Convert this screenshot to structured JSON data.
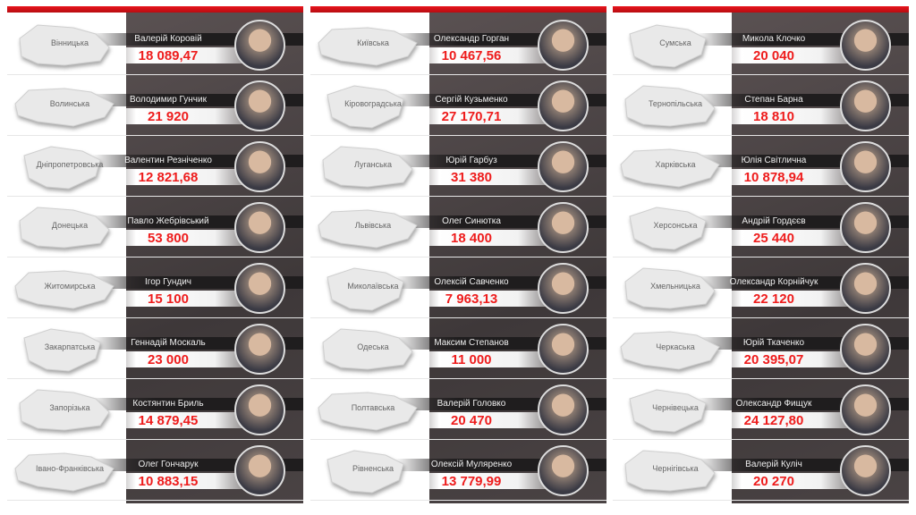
{
  "columns": [
    {
      "rows": [
        {
          "region": "Вінницька",
          "name": "Валерій Коровій",
          "salary": "18 089,47"
        },
        {
          "region": "Волинська",
          "name": "Володимир Гунчик",
          "salary": "21 920"
        },
        {
          "region": "Дніпропетровська",
          "name": "Валентин Резніченко",
          "salary": "12 821,68"
        },
        {
          "region": "Донецька",
          "name": "Павло Жебрівський",
          "salary": "53 800"
        },
        {
          "region": "Житомирська",
          "name": "Ігор Гундич",
          "salary": "15 100"
        },
        {
          "region": "Закарпатська",
          "name": "Геннадій Москаль",
          "salary": "23 000"
        },
        {
          "region": "Запорізька",
          "name": "Костянтин Бриль",
          "salary": "14 879,45"
        },
        {
          "region": "Івано-Франківська",
          "name": "Олег Гончарук",
          "salary": "10 883,15"
        }
      ]
    },
    {
      "rows": [
        {
          "region": "Київська",
          "name": "Олександр Горган",
          "salary": "10 467,56"
        },
        {
          "region": "Кіровоградська",
          "name": "Сергій Кузьменко",
          "salary": "27 170,71"
        },
        {
          "region": "Луганська",
          "name": "Юрій Гарбуз",
          "salary": "31 380"
        },
        {
          "region": "Львівська",
          "name": "Олег Синютка",
          "salary": "18 400"
        },
        {
          "region": "Миколаївська",
          "name": "Олексій Савченко",
          "salary": "7 963,13"
        },
        {
          "region": "Одеська",
          "name": "Максим Степанов",
          "salary": "11 000"
        },
        {
          "region": "Полтавська",
          "name": "Валерій Головко",
          "salary": "20 470"
        },
        {
          "region": "Рівненська",
          "name": "Олексій Муляренко",
          "salary": "13 779,99"
        }
      ]
    },
    {
      "rows": [
        {
          "region": "Сумська",
          "name": "Микола Клочко",
          "salary": "20 040"
        },
        {
          "region": "Тернопільська",
          "name": "Степан Барна",
          "salary": "18 810"
        },
        {
          "region": "Харківська",
          "name": "Юлія Світлична",
          "salary": "10 878,94"
        },
        {
          "region": "Херсонська",
          "name": "Андрій Гордєєв",
          "salary": "25 440"
        },
        {
          "region": "Хмельницька",
          "name": "Олександр Корнійчук",
          "salary": "22 120"
        },
        {
          "region": "Черкаська",
          "name": "Юрій Ткаченко",
          "salary": "20 395,07"
        },
        {
          "region": "Чернівецька",
          "name": "Олександр Фищук",
          "salary": "24 127,80"
        },
        {
          "region": "Чернігівська",
          "name": "Валерій Куліч",
          "salary": "20 270"
        }
      ]
    }
  ],
  "colors": {
    "accent": "#ee1c1c",
    "dark": "#3e3839"
  }
}
